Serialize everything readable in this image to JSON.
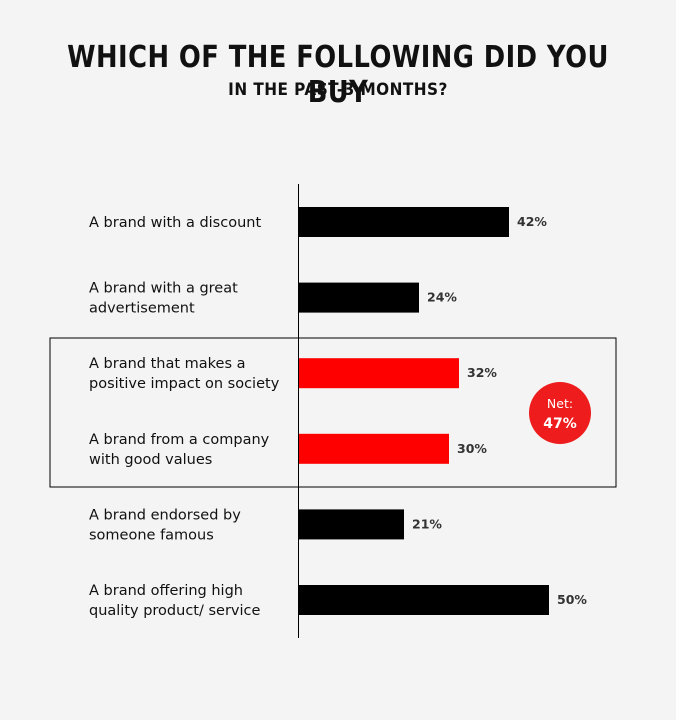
{
  "title": "WHICH OF THE FOLLOWING DID YOU BUY",
  "subtitle": "IN THE PAST-3 MONTHS?",
  "colors": {
    "default_bar": "#000000",
    "highlight_bar": "#ff0000",
    "net_badge": "#ee1c1c"
  },
  "chart_data": {
    "type": "bar",
    "orientation": "horizontal",
    "title": "WHICH OF THE FOLLOWING DID YOU BUY",
    "subtitle": "IN THE PAST-3 MONTHS?",
    "categories": [
      [
        "A brand with a discount"
      ],
      [
        "A brand with a great",
        "advertisement"
      ],
      [
        "A brand that makes a",
        "positive impact on society"
      ],
      [
        "A brand from a company",
        "with good values"
      ],
      [
        "A brand endorsed by",
        "someone famous"
      ],
      [
        "A brand offering high",
        "quality product/ service"
      ]
    ],
    "values": [
      42,
      24,
      32,
      30,
      21,
      50
    ],
    "value_labels": [
      "42%",
      "24%",
      "32%",
      "30%",
      "21%",
      "50%"
    ],
    "highlighted": [
      false,
      false,
      true,
      true,
      false,
      false
    ],
    "xlim": [
      0,
      60
    ],
    "grid": false,
    "annotation": {
      "label": "Net:",
      "value": "47%"
    }
  }
}
